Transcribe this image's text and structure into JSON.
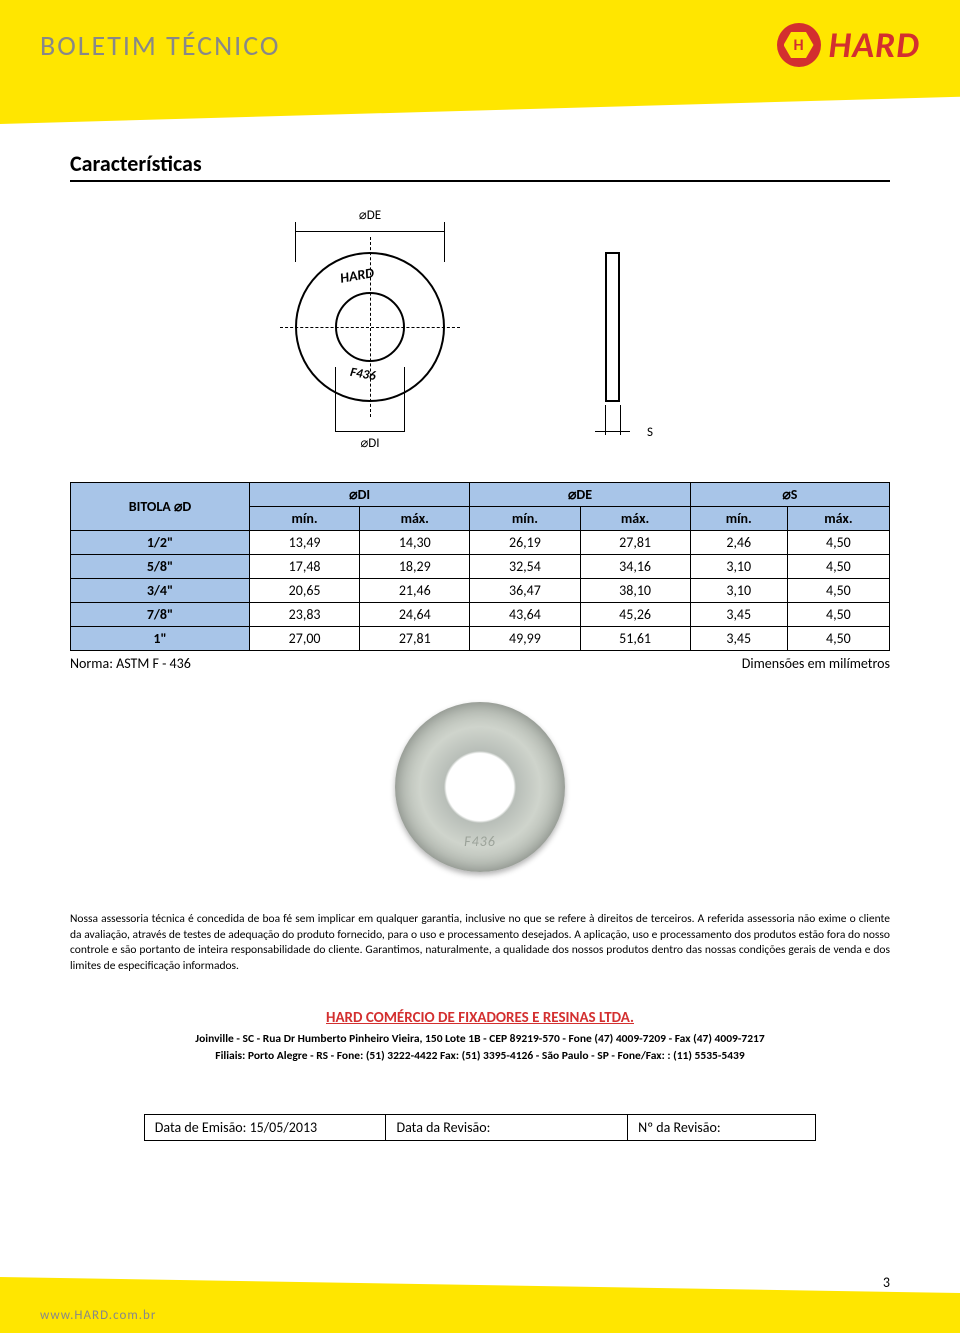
{
  "header": {
    "title": "BOLETIM TÉCNICO",
    "brand": "HARD",
    "brand_badge_letter": "H",
    "brand_color": "#d32f2f",
    "band_color": "#ffe600"
  },
  "section": {
    "title": "Características"
  },
  "diagram": {
    "de_label": "⌀DE",
    "di_label": "⌀DI",
    "s_label": "S",
    "hard_text": "HARD",
    "f436_text": "F436"
  },
  "table": {
    "type": "table",
    "header_bg": "#a8c5e8",
    "border_color": "#000000",
    "col_group_headers": [
      "BITOLA ⌀D",
      "⌀DI",
      "⌀DE",
      "⌀S"
    ],
    "sub_headers": [
      "mín.",
      "máx.",
      "mín.",
      "máx.",
      "mín.",
      "máx."
    ],
    "rows": [
      [
        "1/2\"",
        "13,49",
        "14,30",
        "26,19",
        "27,81",
        "2,46",
        "4,50"
      ],
      [
        "5/8\"",
        "17,48",
        "18,29",
        "32,54",
        "34,16",
        "3,10",
        "4,50"
      ],
      [
        "3/4\"",
        "20,65",
        "21,46",
        "36,47",
        "38,10",
        "3,10",
        "4,50"
      ],
      [
        "7/8\"",
        "23,83",
        "24,64",
        "43,64",
        "45,26",
        "3,45",
        "4,50"
      ],
      [
        "1\"",
        "27,00",
        "27,81",
        "49,99",
        "51,61",
        "3,45",
        "4,50"
      ]
    ],
    "footer_left": "Norma: ASTM F - 436",
    "footer_right": "Dimensões em milímetros"
  },
  "disclaimer": "Nossa assessoria técnica é concedida de boa fé sem implicar em qualquer garantia, inclusive no que se refere à direitos de terceiros. A referida assessoria não exime o cliente da avaliação, através de testes de adequação do produto fornecido, para o uso e processamento desejados. A aplicação, uso e processamento dos produtos estão fora do nosso controle e são portanto de inteira responsabilidade do cliente. Garantimos, naturalmente, a qualidade dos nossos produtos dentro das nossas condições gerais de venda e dos limites de especificação informados.",
  "company": {
    "name": "HARD COMÉRCIO DE FIXADORES E RESINAS LTDA.",
    "address_line1": "Joinville - SC - Rua Dr Humberto Pinheiro Vieira, 150 Lote 1B - CEP 89219-570 - Fone (47) 4009-7209 - Fax (47) 4009-7217",
    "address_line2": "Filiais: Porto Alegre - RS - Fone: (51) 3222-4422 Fax: (51) 3395-4126 - São Paulo - SP - Fone/Fax: : (11) 5535-5439"
  },
  "revision": {
    "emit_label": "Data de Emisão: 15/05/2013",
    "rev_date_label": "Data da Revisão:",
    "rev_num_label": "Nº da Revisão:"
  },
  "footer": {
    "url": "www.HARD.com.br",
    "page_number": "3"
  }
}
